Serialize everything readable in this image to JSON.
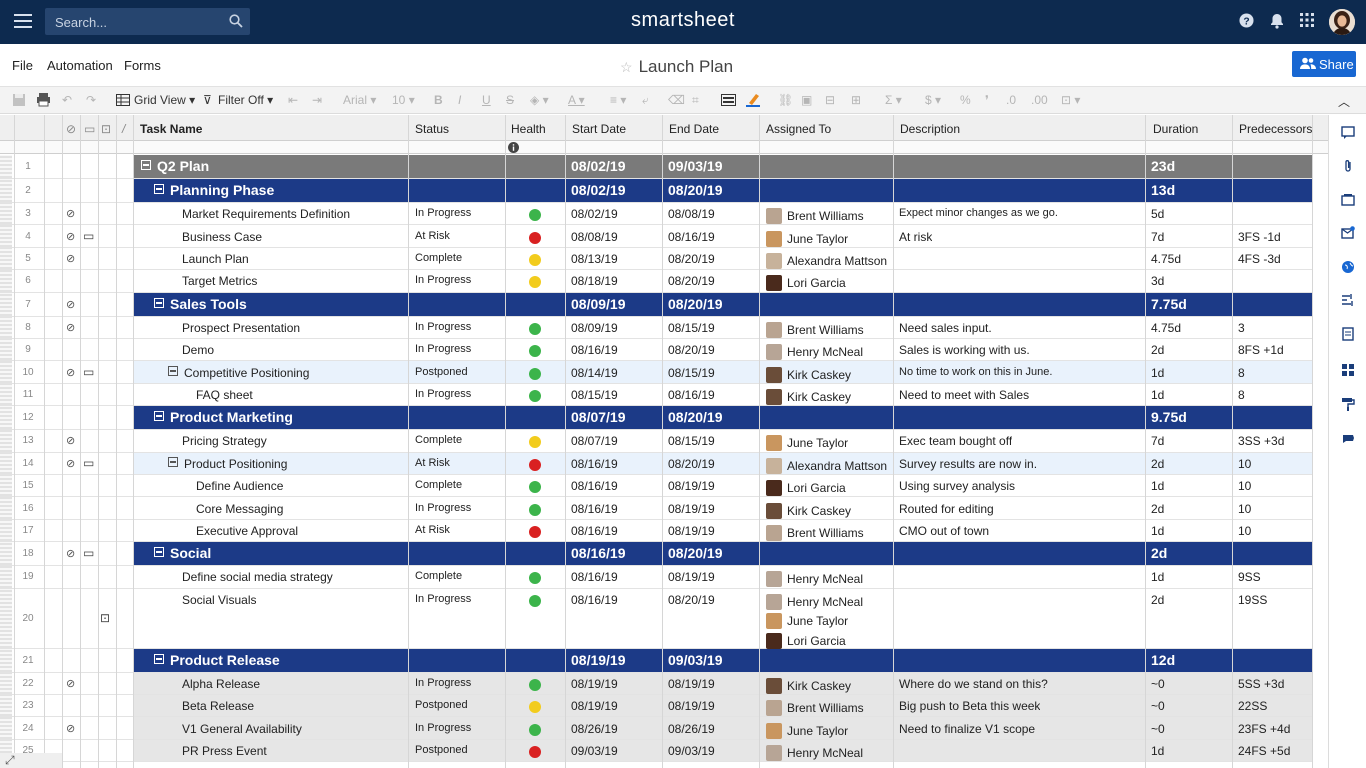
{
  "app": {
    "brand": "smartsheet",
    "search_placeholder": "Search..."
  },
  "menu": {
    "file": "File",
    "automation": "Automation",
    "forms": "Forms",
    "title": "Launch Plan",
    "share": "Share"
  },
  "toolbar": {
    "view": "Grid View",
    "filter": "Filter Off",
    "font": "Arial",
    "size": "10"
  },
  "columns": {
    "task": "Task Name",
    "status": "Status",
    "health": "Health",
    "start": "Start Date",
    "end": "End Date",
    "assigned": "Assigned To",
    "desc": "Description",
    "duration": "Duration",
    "pred": "Predecessors"
  },
  "colors": {
    "topbar": "#0d2a4f",
    "group": "#1c3a87",
    "root": "#7a7a7a",
    "green": "#3cb44b",
    "yellow": "#f2cc1d",
    "red": "#d92121",
    "share": "#1867d2"
  },
  "rows": [
    {
      "n": "1",
      "type": "root",
      "task": "Q2 Plan",
      "start": "08/02/19",
      "end": "09/03/19",
      "dur": "23d"
    },
    {
      "n": "2",
      "type": "group",
      "task": "Planning Phase",
      "start": "08/02/19",
      "end": "08/20/19",
      "dur": "13d"
    },
    {
      "n": "3",
      "type": "task",
      "indent": 1,
      "task": "Market Requirements Definition",
      "status": "In Progress",
      "health": "green",
      "start": "08/02/19",
      "end": "08/08/19",
      "assigned": [
        "Brent Williams"
      ],
      "desc": "Expect minor changes as we go.",
      "dur": "5d",
      "pred": "",
      "attach": true
    },
    {
      "n": "4",
      "type": "task",
      "indent": 1,
      "task": "Business Case",
      "status": "At Risk",
      "health": "red",
      "start": "08/08/19",
      "end": "08/16/19",
      "assigned": [
        "June Taylor"
      ],
      "desc": "At risk",
      "dur": "7d",
      "pred": "3FS -1d",
      "attach": true,
      "comment": true
    },
    {
      "n": "5",
      "type": "task",
      "indent": 1,
      "task": "Launch Plan",
      "status": "Complete",
      "health": "yellow",
      "start": "08/13/19",
      "end": "08/20/19",
      "assigned": [
        "Alexandra Mattson"
      ],
      "desc": "",
      "dur": "4.75d",
      "pred": "4FS -3d",
      "attach": true
    },
    {
      "n": "6",
      "type": "task",
      "indent": 1,
      "task": "Target Metrics",
      "status": "In Progress",
      "health": "yellow",
      "start": "08/18/19",
      "end": "08/20/19",
      "assigned": [
        "Lori Garcia"
      ],
      "desc": "",
      "dur": "3d",
      "pred": ""
    },
    {
      "n": "7",
      "type": "group",
      "task": "Sales Tools",
      "start": "08/09/19",
      "end": "08/20/19",
      "dur": "7.75d",
      "attach": true
    },
    {
      "n": "8",
      "type": "task",
      "indent": 1,
      "task": "Prospect Presentation",
      "status": "In Progress",
      "health": "green",
      "start": "08/09/19",
      "end": "08/15/19",
      "assigned": [
        "Brent Williams"
      ],
      "desc": "Need sales input.",
      "dur": "4.75d",
      "pred": "3",
      "attach": true
    },
    {
      "n": "9",
      "type": "task",
      "indent": 1,
      "task": "Demo",
      "status": "In Progress",
      "health": "green",
      "start": "08/16/19",
      "end": "08/20/19",
      "assigned": [
        "Henry McNeal"
      ],
      "desc": "Sales is working with us.",
      "dur": "2d",
      "pred": "8FS +1d"
    },
    {
      "n": "10",
      "type": "task",
      "indent": 1,
      "sub": true,
      "task": "Competitive Positioning",
      "status": "Postponed",
      "health": "green",
      "start": "08/14/19",
      "end": "08/15/19",
      "assigned": [
        "Kirk Caskey"
      ],
      "desc": "No time to work on this in June.",
      "dur": "1d",
      "pred": "8",
      "attach": true,
      "comment": true,
      "hl": true
    },
    {
      "n": "11",
      "type": "task",
      "indent": 2,
      "task": "FAQ sheet",
      "status": "In Progress",
      "health": "green",
      "start": "08/15/19",
      "end": "08/16/19",
      "assigned": [
        "Kirk Caskey"
      ],
      "desc": "Need to meet with Sales",
      "dur": "1d",
      "pred": "8"
    },
    {
      "n": "12",
      "type": "group",
      "task": "Product Marketing",
      "start": "08/07/19",
      "end": "08/20/19",
      "dur": "9.75d"
    },
    {
      "n": "13",
      "type": "task",
      "indent": 1,
      "task": "Pricing Strategy",
      "status": "Complete",
      "health": "yellow",
      "start": "08/07/19",
      "end": "08/15/19",
      "assigned": [
        "June Taylor"
      ],
      "desc": "Exec team bought off",
      "dur": "7d",
      "pred": "3SS +3d",
      "attach": true
    },
    {
      "n": "14",
      "type": "task",
      "indent": 1,
      "sub": true,
      "task": "Product Positioning",
      "status": "At Risk",
      "health": "red",
      "start": "08/16/19",
      "end": "08/20/19",
      "assigned": [
        "Alexandra Mattson"
      ],
      "desc": "Survey results are now in.",
      "dur": "2d",
      "pred": "10",
      "attach": true,
      "comment": true,
      "hl": true
    },
    {
      "n": "15",
      "type": "task",
      "indent": 2,
      "task": "Define Audience",
      "status": "Complete",
      "health": "green",
      "start": "08/16/19",
      "end": "08/19/19",
      "assigned": [
        "Lori Garcia"
      ],
      "desc": "Using survey analysis",
      "dur": "1d",
      "pred": "10"
    },
    {
      "n": "16",
      "type": "task",
      "indent": 2,
      "task": "Core Messaging",
      "status": "In Progress",
      "health": "green",
      "start": "08/16/19",
      "end": "08/19/19",
      "assigned": [
        "Kirk Caskey"
      ],
      "desc": "Routed for editing",
      "dur": "2d",
      "pred": "10"
    },
    {
      "n": "17",
      "type": "task",
      "indent": 2,
      "task": "Executive Approval",
      "status": "At Risk",
      "health": "red",
      "start": "08/16/19",
      "end": "08/19/19",
      "assigned": [
        "Brent Williams"
      ],
      "desc": "CMO out of town",
      "dur": "1d",
      "pred": "10"
    },
    {
      "n": "18",
      "type": "group",
      "task": "Social",
      "start": "08/16/19",
      "end": "08/20/19",
      "dur": "2d",
      "attach": true,
      "comment": true
    },
    {
      "n": "19",
      "type": "task",
      "indent": 1,
      "task": "Define social media strategy",
      "status": "Complete",
      "health": "green",
      "start": "08/16/19",
      "end": "08/19/19",
      "assigned": [
        "Henry McNeal"
      ],
      "desc": "",
      "dur": "1d",
      "pred": "9SS"
    },
    {
      "n": "20",
      "type": "task",
      "indent": 1,
      "tall": true,
      "task": "Social Visuals",
      "status": "In Progress",
      "health": "green",
      "start": "08/16/19",
      "end": "08/20/19",
      "assigned": [
        "Henry McNeal",
        "June Taylor",
        "Lori Garcia"
      ],
      "desc": "",
      "dur": "2d",
      "pred": "19SS",
      "proof": true
    },
    {
      "n": "21",
      "type": "group",
      "task": "Product Release",
      "start": "08/19/19",
      "end": "09/03/19",
      "dur": "12d"
    },
    {
      "n": "22",
      "type": "task",
      "indent": 1,
      "gray": true,
      "task": "Alpha Release",
      "status": "In Progress",
      "health": "green",
      "start": "08/19/19",
      "end": "08/19/19",
      "assigned": [
        "Kirk Caskey"
      ],
      "desc": "Where do we stand on this?",
      "dur": "~0",
      "pred": "5SS +3d",
      "attach": true
    },
    {
      "n": "23",
      "type": "task",
      "indent": 1,
      "gray": true,
      "task": "Beta Release",
      "status": "Postponed",
      "health": "yellow",
      "start": "08/19/19",
      "end": "08/19/19",
      "assigned": [
        "Brent Williams"
      ],
      "desc": "Big push to Beta this week",
      "dur": "~0",
      "pred": "22SS"
    },
    {
      "n": "24",
      "type": "task",
      "indent": 1,
      "gray": true,
      "task": "V1 General Availability",
      "status": "In Progress",
      "health": "green",
      "start": "08/26/19",
      "end": "08/26/19",
      "assigned": [
        "June Taylor"
      ],
      "desc": "Need to finalize V1 scope",
      "dur": "~0",
      "pred": "23FS +4d",
      "attach": true
    },
    {
      "n": "25",
      "type": "task",
      "indent": 1,
      "gray": true,
      "task": "PR Press Event",
      "status": "Postponed",
      "health": "red",
      "start": "09/03/19",
      "end": "09/03/19",
      "assigned": [
        "Henry McNeal"
      ],
      "desc": "",
      "dur": "1d",
      "pred": "24FS +5d"
    }
  ]
}
